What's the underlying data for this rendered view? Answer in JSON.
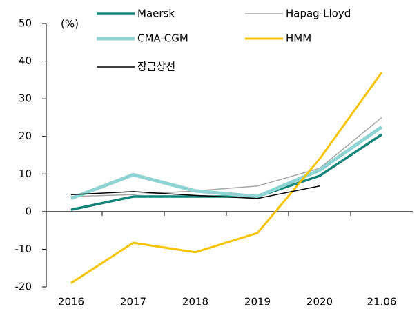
{
  "chart_data": {
    "type": "line",
    "annotation": "(%)",
    "categories": [
      "2016",
      "2017",
      "2018",
      "2019",
      "2020",
      "21.06"
    ],
    "series": [
      {
        "name": "Maersk",
        "color": "#13837a",
        "width": 3.5,
        "values": [
          0.5,
          4.0,
          4.0,
          4.0,
          9.5,
          20.5
        ]
      },
      {
        "name": "Hapag-Lloyd",
        "color": "#a6a6a6",
        "width": 1.5,
        "values": [
          4.0,
          4.5,
          5.5,
          6.8,
          11.5,
          25.0
        ]
      },
      {
        "name": "CMA-CGM",
        "color": "#8fd3d3",
        "width": 5,
        "values": [
          3.5,
          9.8,
          5.5,
          4.0,
          11.0,
          22.5
        ]
      },
      {
        "name": "HMM",
        "color": "#f5c300",
        "width": 3,
        "values": [
          -19.0,
          -8.3,
          -10.8,
          -5.7,
          14.0,
          37.0
        ]
      },
      {
        "name": "장금상선",
        "color": "#000000",
        "width": 1.5,
        "values": [
          4.5,
          5.3,
          4.3,
          3.5,
          6.8,
          null
        ]
      }
    ],
    "ylim": [
      -20,
      50
    ],
    "yticks": [
      50,
      40,
      30,
      20,
      10,
      0,
      -10,
      -20
    ],
    "grid": false
  }
}
